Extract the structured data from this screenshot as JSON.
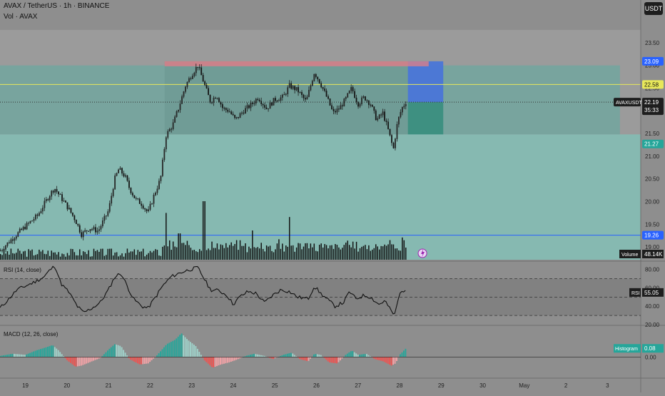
{
  "header": {
    "symbol_title": "AVAX / TetherUS · 1h · BINANCE",
    "volume_label": "Vol · AVAX",
    "currency_button": "USDT"
  },
  "colors": {
    "up": "#26a69a",
    "down": "#ef5350",
    "background": "#8e8e8e",
    "target_zone": "#4a76d8",
    "stop_zone": "#3b8f80",
    "support_line": "#2962ff",
    "resistance_line": "#e8e85a"
  },
  "chart_data": [
    {
      "type": "candlestick",
      "pane": "price",
      "symbol": "AVAXUSDT",
      "current_price": "22.19",
      "countdown": "35:33",
      "y_ticks": [
        "23.50",
        "23.00",
        "22.50",
        "22.00",
        "21.50",
        "21.00",
        "20.50",
        "20.00",
        "19.50",
        "19.00"
      ],
      "y_tick_values": [
        23.5,
        23.0,
        22.5,
        22.0,
        21.5,
        21.0,
        20.5,
        20.0,
        19.5,
        19.0
      ],
      "ylim": [
        18.72,
        23.78
      ],
      "x_ticks": [
        "19",
        "20",
        "21",
        "22",
        "23",
        "24",
        "25",
        "26",
        "27",
        "28",
        "29",
        "30",
        "May",
        "2",
        "3"
      ],
      "x_tick_days": [
        19,
        20,
        21,
        22,
        23,
        24,
        25,
        26,
        27,
        28,
        29,
        30,
        31,
        32,
        33
      ],
      "xlim": [
        18.39,
        33.8
      ],
      "price_labels": [
        {
          "text": "23.09",
          "value": 23.09,
          "color": "#2962ff"
        },
        {
          "text": "22.58",
          "value": 22.58,
          "color": "#e8e85a"
        },
        {
          "text": "22.18",
          "value": 22.18,
          "color": "#2962ff"
        },
        {
          "text": "21.27",
          "value": 21.27,
          "color": "#26a69a"
        },
        {
          "text": "19.26",
          "value": 19.26,
          "color": "#2962ff"
        }
      ],
      "horizontal_lines": [
        {
          "value": 22.58,
          "color": "#e8e85a"
        },
        {
          "value": 19.26,
          "color": "#2962ff"
        },
        {
          "value": 22.19,
          "color": "#333333",
          "dashed": true
        }
      ],
      "zones": [
        {
          "name": "range-box",
          "from_day": 22.35,
          "to_day": 28.7,
          "low": 21.44,
          "high": 23.09
        },
        {
          "name": "upper-band",
          "from_day": 18.39,
          "to_day": 33.3,
          "low": 21.48,
          "high": 23.0
        },
        {
          "name": "target-zone",
          "from_day": 28.2,
          "to_day": 29.05,
          "low": 22.19,
          "high": 23.09
        },
        {
          "name": "stop-zone",
          "from_day": 28.2,
          "to_day": 29.05,
          "low": 21.27,
          "high": 22.19
        }
      ],
      "anchors": [
        {
          "day": 18.4,
          "price": 18.92
        },
        {
          "day": 18.7,
          "price": 19.2
        },
        {
          "day": 19.0,
          "price": 19.45
        },
        {
          "day": 19.3,
          "price": 19.7
        },
        {
          "day": 19.55,
          "price": 20.1
        },
        {
          "day": 19.7,
          "price": 20.3
        },
        {
          "day": 19.85,
          "price": 20.1
        },
        {
          "day": 20.0,
          "price": 19.9
        },
        {
          "day": 20.2,
          "price": 19.6
        },
        {
          "day": 20.35,
          "price": 19.28
        },
        {
          "day": 20.55,
          "price": 19.42
        },
        {
          "day": 20.75,
          "price": 19.35
        },
        {
          "day": 21.0,
          "price": 19.8
        },
        {
          "day": 21.15,
          "price": 20.5
        },
        {
          "day": 21.25,
          "price": 20.72
        },
        {
          "day": 21.4,
          "price": 20.55
        },
        {
          "day": 21.5,
          "price": 20.3
        },
        {
          "day": 21.65,
          "price": 20.05
        },
        {
          "day": 21.8,
          "price": 19.95
        },
        {
          "day": 21.95,
          "price": 19.75
        },
        {
          "day": 22.1,
          "price": 20.15
        },
        {
          "day": 22.25,
          "price": 20.5
        },
        {
          "day": 22.38,
          "price": 21.45
        },
        {
          "day": 22.55,
          "price": 21.7
        },
        {
          "day": 22.7,
          "price": 22.1
        },
        {
          "day": 22.85,
          "price": 22.55
        },
        {
          "day": 23.0,
          "price": 22.8
        },
        {
          "day": 23.15,
          "price": 23.0
        },
        {
          "day": 23.3,
          "price": 22.6
        },
        {
          "day": 23.45,
          "price": 22.2
        },
        {
          "day": 23.6,
          "price": 22.35
        },
        {
          "day": 23.75,
          "price": 22.05
        },
        {
          "day": 23.9,
          "price": 22.0
        },
        {
          "day": 24.05,
          "price": 21.8
        },
        {
          "day": 24.25,
          "price": 22.0
        },
        {
          "day": 24.45,
          "price": 22.15
        },
        {
          "day": 24.6,
          "price": 22.3
        },
        {
          "day": 24.8,
          "price": 22.05
        },
        {
          "day": 25.0,
          "price": 22.25
        },
        {
          "day": 25.2,
          "price": 22.3
        },
        {
          "day": 25.35,
          "price": 22.55
        },
        {
          "day": 25.55,
          "price": 22.45
        },
        {
          "day": 25.75,
          "price": 22.2
        },
        {
          "day": 25.95,
          "price": 22.85
        },
        {
          "day": 26.1,
          "price": 22.6
        },
        {
          "day": 26.25,
          "price": 22.3
        },
        {
          "day": 26.4,
          "price": 21.95
        },
        {
          "day": 26.55,
          "price": 22.05
        },
        {
          "day": 26.7,
          "price": 22.25
        },
        {
          "day": 26.85,
          "price": 22.5
        },
        {
          "day": 27.0,
          "price": 22.15
        },
        {
          "day": 27.15,
          "price": 22.3
        },
        {
          "day": 27.3,
          "price": 22.15
        },
        {
          "day": 27.45,
          "price": 21.8
        },
        {
          "day": 27.6,
          "price": 21.95
        },
        {
          "day": 27.72,
          "price": 21.6
        },
        {
          "day": 27.85,
          "price": 21.15
        },
        {
          "day": 27.95,
          "price": 21.75
        },
        {
          "day": 28.05,
          "price": 22.05
        },
        {
          "day": 28.15,
          "price": 22.19
        }
      ]
    },
    {
      "type": "bar",
      "pane": "volume",
      "label": "Volume",
      "value": "48.14K",
      "spikes": [
        {
          "day": 22.38,
          "height": 0.8
        },
        {
          "day": 22.7,
          "height": 0.45
        },
        {
          "day": 23.3,
          "height": 1.0
        },
        {
          "day": 24.45,
          "height": 0.5
        },
        {
          "day": 25.35,
          "height": 0.73
        },
        {
          "day": 25.1,
          "height": 0.35
        },
        {
          "day": 28.05,
          "height": 0.38
        }
      ]
    },
    {
      "type": "line",
      "pane": "rsi",
      "title": "RSI (14, close)",
      "current": "55.05",
      "y_ticks": [
        "80.00",
        "60.00",
        "40.00",
        "20.00"
      ],
      "y_tick_values": [
        80,
        60,
        40,
        20
      ],
      "ylim": [
        20,
        86
      ],
      "bands": [
        70,
        50,
        30
      ],
      "points": [
        {
          "day": 18.39,
          "value": 38
        },
        {
          "day": 18.6,
          "value": 48
        },
        {
          "day": 18.8,
          "value": 58
        },
        {
          "day": 19.0,
          "value": 62
        },
        {
          "day": 19.2,
          "value": 66
        },
        {
          "day": 19.45,
          "value": 72
        },
        {
          "day": 19.6,
          "value": 80
        },
        {
          "day": 19.72,
          "value": 84
        },
        {
          "day": 19.85,
          "value": 65
        },
        {
          "day": 20.05,
          "value": 55
        },
        {
          "day": 20.25,
          "value": 40
        },
        {
          "day": 20.4,
          "value": 33
        },
        {
          "day": 20.6,
          "value": 38
        },
        {
          "day": 20.8,
          "value": 44
        },
        {
          "day": 21.0,
          "value": 58
        },
        {
          "day": 21.15,
          "value": 72
        },
        {
          "day": 21.3,
          "value": 76
        },
        {
          "day": 21.45,
          "value": 62
        },
        {
          "day": 21.6,
          "value": 48
        },
        {
          "day": 21.8,
          "value": 40
        },
        {
          "day": 21.95,
          "value": 38
        },
        {
          "day": 22.1,
          "value": 48
        },
        {
          "day": 22.3,
          "value": 62
        },
        {
          "day": 22.5,
          "value": 72
        },
        {
          "day": 22.7,
          "value": 76
        },
        {
          "day": 22.95,
          "value": 80
        },
        {
          "day": 23.15,
          "value": 82
        },
        {
          "day": 23.3,
          "value": 70
        },
        {
          "day": 23.45,
          "value": 58
        },
        {
          "day": 23.65,
          "value": 57
        },
        {
          "day": 23.85,
          "value": 52
        },
        {
          "day": 24.0,
          "value": 42
        },
        {
          "day": 24.15,
          "value": 50
        },
        {
          "day": 24.35,
          "value": 56
        },
        {
          "day": 24.55,
          "value": 54
        },
        {
          "day": 24.75,
          "value": 44
        },
        {
          "day": 24.95,
          "value": 52
        },
        {
          "day": 25.15,
          "value": 58
        },
        {
          "day": 25.35,
          "value": 56
        },
        {
          "day": 25.55,
          "value": 50
        },
        {
          "day": 25.8,
          "value": 48
        },
        {
          "day": 25.95,
          "value": 62
        },
        {
          "day": 26.1,
          "value": 54
        },
        {
          "day": 26.3,
          "value": 46
        },
        {
          "day": 26.45,
          "value": 40
        },
        {
          "day": 26.65,
          "value": 44
        },
        {
          "day": 26.8,
          "value": 56
        },
        {
          "day": 26.95,
          "value": 48
        },
        {
          "day": 27.15,
          "value": 52
        },
        {
          "day": 27.3,
          "value": 50
        },
        {
          "day": 27.5,
          "value": 42
        },
        {
          "day": 27.65,
          "value": 46
        },
        {
          "day": 27.78,
          "value": 36
        },
        {
          "day": 27.88,
          "value": 30
        },
        {
          "day": 27.98,
          "value": 50
        },
        {
          "day": 28.05,
          "value": 58
        },
        {
          "day": 28.15,
          "value": 55
        }
      ]
    },
    {
      "type": "histogram",
      "pane": "macd",
      "title": "MACD (12, 26, close)",
      "label": "Histogram",
      "current": "0.08",
      "y_ticks": [
        "0.00"
      ],
      "y_tick_values": [
        0
      ],
      "ylim": [
        -0.17,
        0.28
      ],
      "points": [
        {
          "day": 18.39,
          "value": 0.01
        },
        {
          "day": 18.7,
          "value": 0.03
        },
        {
          "day": 19.0,
          "value": 0.02
        },
        {
          "day": 19.25,
          "value": 0.06
        },
        {
          "day": 19.5,
          "value": 0.09
        },
        {
          "day": 19.65,
          "value": 0.11
        },
        {
          "day": 19.8,
          "value": 0.06
        },
        {
          "day": 20.0,
          "value": -0.03
        },
        {
          "day": 20.2,
          "value": -0.09
        },
        {
          "day": 20.35,
          "value": -0.08
        },
        {
          "day": 20.6,
          "value": -0.04
        },
        {
          "day": 20.8,
          "value": -0.01
        },
        {
          "day": 21.0,
          "value": 0.07
        },
        {
          "day": 21.15,
          "value": 0.12
        },
        {
          "day": 21.3,
          "value": 0.1
        },
        {
          "day": 21.5,
          "value": -0.02
        },
        {
          "day": 21.75,
          "value": -0.07
        },
        {
          "day": 21.95,
          "value": -0.06
        },
        {
          "day": 22.15,
          "value": 0.01
        },
        {
          "day": 22.4,
          "value": 0.12
        },
        {
          "day": 22.6,
          "value": 0.16
        },
        {
          "day": 22.75,
          "value": 0.22
        },
        {
          "day": 22.9,
          "value": 0.16
        },
        {
          "day": 23.1,
          "value": 0.1
        },
        {
          "day": 23.3,
          "value": -0.03
        },
        {
          "day": 23.5,
          "value": -0.1
        },
        {
          "day": 23.7,
          "value": -0.07
        },
        {
          "day": 23.9,
          "value": -0.05
        },
        {
          "day": 24.05,
          "value": -0.03
        },
        {
          "day": 24.3,
          "value": 0.01
        },
        {
          "day": 24.5,
          "value": 0.03
        },
        {
          "day": 24.75,
          "value": 0.01
        },
        {
          "day": 24.95,
          "value": -0.02
        },
        {
          "day": 25.2,
          "value": 0.02
        },
        {
          "day": 25.4,
          "value": 0.04
        },
        {
          "day": 25.6,
          "value": -0.02
        },
        {
          "day": 25.8,
          "value": -0.04
        },
        {
          "day": 25.95,
          "value": 0.03
        },
        {
          "day": 26.1,
          "value": 0.02
        },
        {
          "day": 26.3,
          "value": -0.05
        },
        {
          "day": 26.5,
          "value": -0.06
        },
        {
          "day": 26.7,
          "value": 0.02
        },
        {
          "day": 26.85,
          "value": 0.06
        },
        {
          "day": 27.0,
          "value": 0.02
        },
        {
          "day": 27.2,
          "value": 0.03
        },
        {
          "day": 27.4,
          "value": -0.02
        },
        {
          "day": 27.6,
          "value": -0.04
        },
        {
          "day": 27.8,
          "value": -0.08
        },
        {
          "day": 27.9,
          "value": -0.06
        },
        {
          "day": 28.0,
          "value": 0.02
        },
        {
          "day": 28.15,
          "value": 0.08
        }
      ]
    }
  ]
}
